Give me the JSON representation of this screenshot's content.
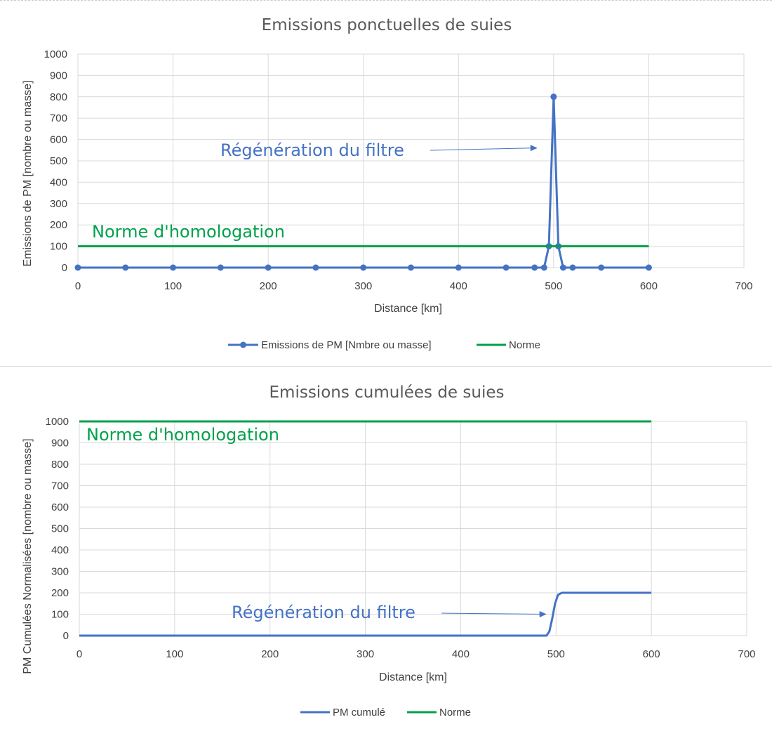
{
  "chart_data": [
    {
      "type": "line",
      "title": "Emissions ponctuelles de suies",
      "xlabel": "Distance [km]",
      "ylabel": "Emissions de PM [nombre ou masse]",
      "xlim": [
        0,
        700
      ],
      "ylim": [
        0,
        1000
      ],
      "xticks": [
        0,
        100,
        200,
        300,
        400,
        500,
        600,
        700
      ],
      "yticks": [
        0,
        100,
        200,
        300,
        400,
        500,
        600,
        700,
        800,
        900,
        1000
      ],
      "grid": true,
      "legend_position": "bottom",
      "series": [
        {
          "name": "Emissions de PM [Nmbre ou masse]",
          "color": "#4472C4",
          "markers": true,
          "x": [
            0,
            50,
            100,
            150,
            200,
            250,
            300,
            350,
            400,
            450,
            480,
            490,
            495,
            500,
            505,
            510,
            520,
            550,
            600
          ],
          "y": [
            0,
            0,
            0,
            0,
            0,
            0,
            0,
            0,
            0,
            0,
            0,
            0,
            100,
            800,
            100,
            0,
            0,
            0,
            0
          ]
        },
        {
          "name": "Norme",
          "color": "#00A14B",
          "markers": false,
          "x": [
            0,
            600
          ],
          "y": [
            100,
            100
          ]
        }
      ],
      "annotations": [
        {
          "text": "Régénération du filtre",
          "color": "#4472C4",
          "arrow_to": [
            483,
            560
          ]
        },
        {
          "text": "Norme d'homologation",
          "color": "#00A14B"
        }
      ]
    },
    {
      "type": "line",
      "title": "Emissions cumulées de suies",
      "xlabel": "Distance [km]",
      "ylabel": "PM Cumulées Normalisées [nombre ou masse]",
      "xlim": [
        0,
        700
      ],
      "ylim": [
        0,
        1000
      ],
      "xticks": [
        0,
        100,
        200,
        300,
        400,
        500,
        600,
        700
      ],
      "yticks": [
        0,
        100,
        200,
        300,
        400,
        500,
        600,
        700,
        800,
        900,
        1000
      ],
      "grid": true,
      "legend_position": "bottom",
      "series": [
        {
          "name": "PM cumulé",
          "color": "#4472C4",
          "markers": false,
          "x": [
            0,
            490,
            493,
            496,
            499,
            502,
            506,
            510,
            600
          ],
          "y": [
            0,
            0,
            20,
            80,
            150,
            190,
            200,
            200,
            200
          ]
        },
        {
          "name": "Norme",
          "color": "#00A14B",
          "markers": false,
          "x": [
            0,
            600
          ],
          "y": [
            1000,
            1000
          ]
        }
      ],
      "annotations": [
        {
          "text": "Régénération du filtre",
          "color": "#4472C4",
          "arrow_to": [
            490,
            100
          ]
        },
        {
          "text": "Norme d'homologation",
          "color": "#00A14B"
        }
      ]
    }
  ]
}
